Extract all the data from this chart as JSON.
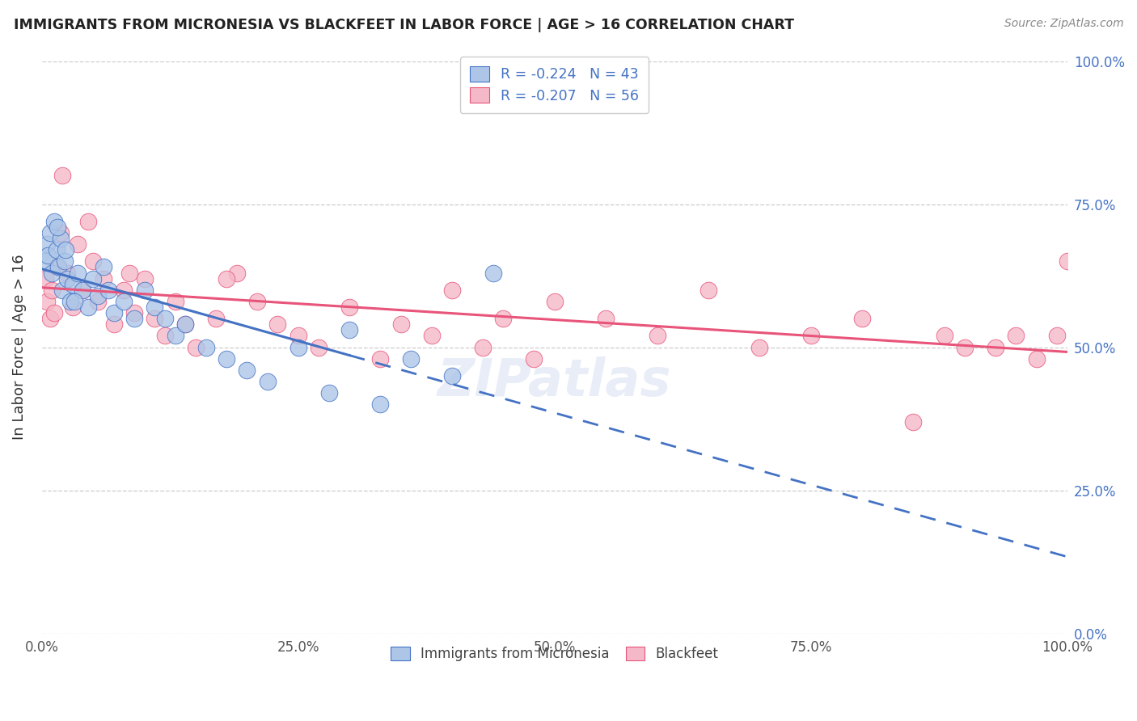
{
  "title": "IMMIGRANTS FROM MICRONESIA VS BLACKFEET IN LABOR FORCE | AGE > 16 CORRELATION CHART",
  "source": "Source: ZipAtlas.com",
  "ylabel": "In Labor Force | Age > 16",
  "legend_entry1": "R = -0.224   N = 43",
  "legend_entry2": "R = -0.207   N = 56",
  "color_blue": "#adc6e8",
  "color_pink": "#f5b8c8",
  "line_blue": "#4472c4",
  "line_pink": "#e8547a",
  "ytick_positions": [
    0,
    25,
    50,
    75,
    100
  ],
  "xtick_positions": [
    0,
    25,
    50,
    75,
    100
  ],
  "mic_x": [
    0.3,
    0.5,
    0.6,
    0.8,
    1.0,
    1.2,
    1.4,
    1.6,
    1.8,
    2.0,
    2.2,
    2.5,
    2.8,
    3.0,
    3.5,
    4.0,
    4.5,
    5.0,
    5.5,
    6.0,
    7.0,
    8.0,
    9.0,
    10.0,
    11.0,
    13.0,
    14.0,
    16.0,
    18.0,
    20.0,
    22.0,
    25.0,
    28.0,
    30.0,
    33.0,
    36.0,
    40.0,
    44.0,
    1.5,
    2.3,
    3.2,
    6.5,
    12.0
  ],
  "mic_y": [
    65,
    68,
    66,
    70,
    63,
    72,
    67,
    64,
    69,
    60,
    65,
    62,
    58,
    61,
    63,
    60,
    57,
    62,
    59,
    64,
    56,
    58,
    55,
    60,
    57,
    52,
    54,
    50,
    48,
    46,
    44,
    50,
    42,
    53,
    40,
    48,
    45,
    63,
    71,
    67,
    58,
    60,
    55
  ],
  "bf_x": [
    0.3,
    0.5,
    0.8,
    1.0,
    1.2,
    1.5,
    1.8,
    2.0,
    2.5,
    3.0,
    3.5,
    4.0,
    4.5,
    5.0,
    5.5,
    6.0,
    7.0,
    8.0,
    9.0,
    10.0,
    11.0,
    12.0,
    13.0,
    14.0,
    15.0,
    17.0,
    19.0,
    21.0,
    23.0,
    25.0,
    27.0,
    30.0,
    33.0,
    35.0,
    38.0,
    40.0,
    43.0,
    45.0,
    48.0,
    50.0,
    55.0,
    60.0,
    65.0,
    70.0,
    75.0,
    80.0,
    85.0,
    88.0,
    90.0,
    93.0,
    95.0,
    97.0,
    99.0,
    100.0,
    18.0,
    8.5
  ],
  "bf_y": [
    62,
    58,
    55,
    60,
    56,
    64,
    70,
    80,
    63,
    57,
    68,
    60,
    72,
    65,
    58,
    62,
    54,
    60,
    56,
    62,
    55,
    52,
    58,
    54,
    50,
    55,
    63,
    58,
    54,
    52,
    50,
    57,
    48,
    54,
    52,
    60,
    50,
    55,
    48,
    58,
    55,
    52,
    60,
    50,
    52,
    55,
    37,
    52,
    50,
    50,
    52,
    48,
    52,
    65,
    62,
    63
  ]
}
